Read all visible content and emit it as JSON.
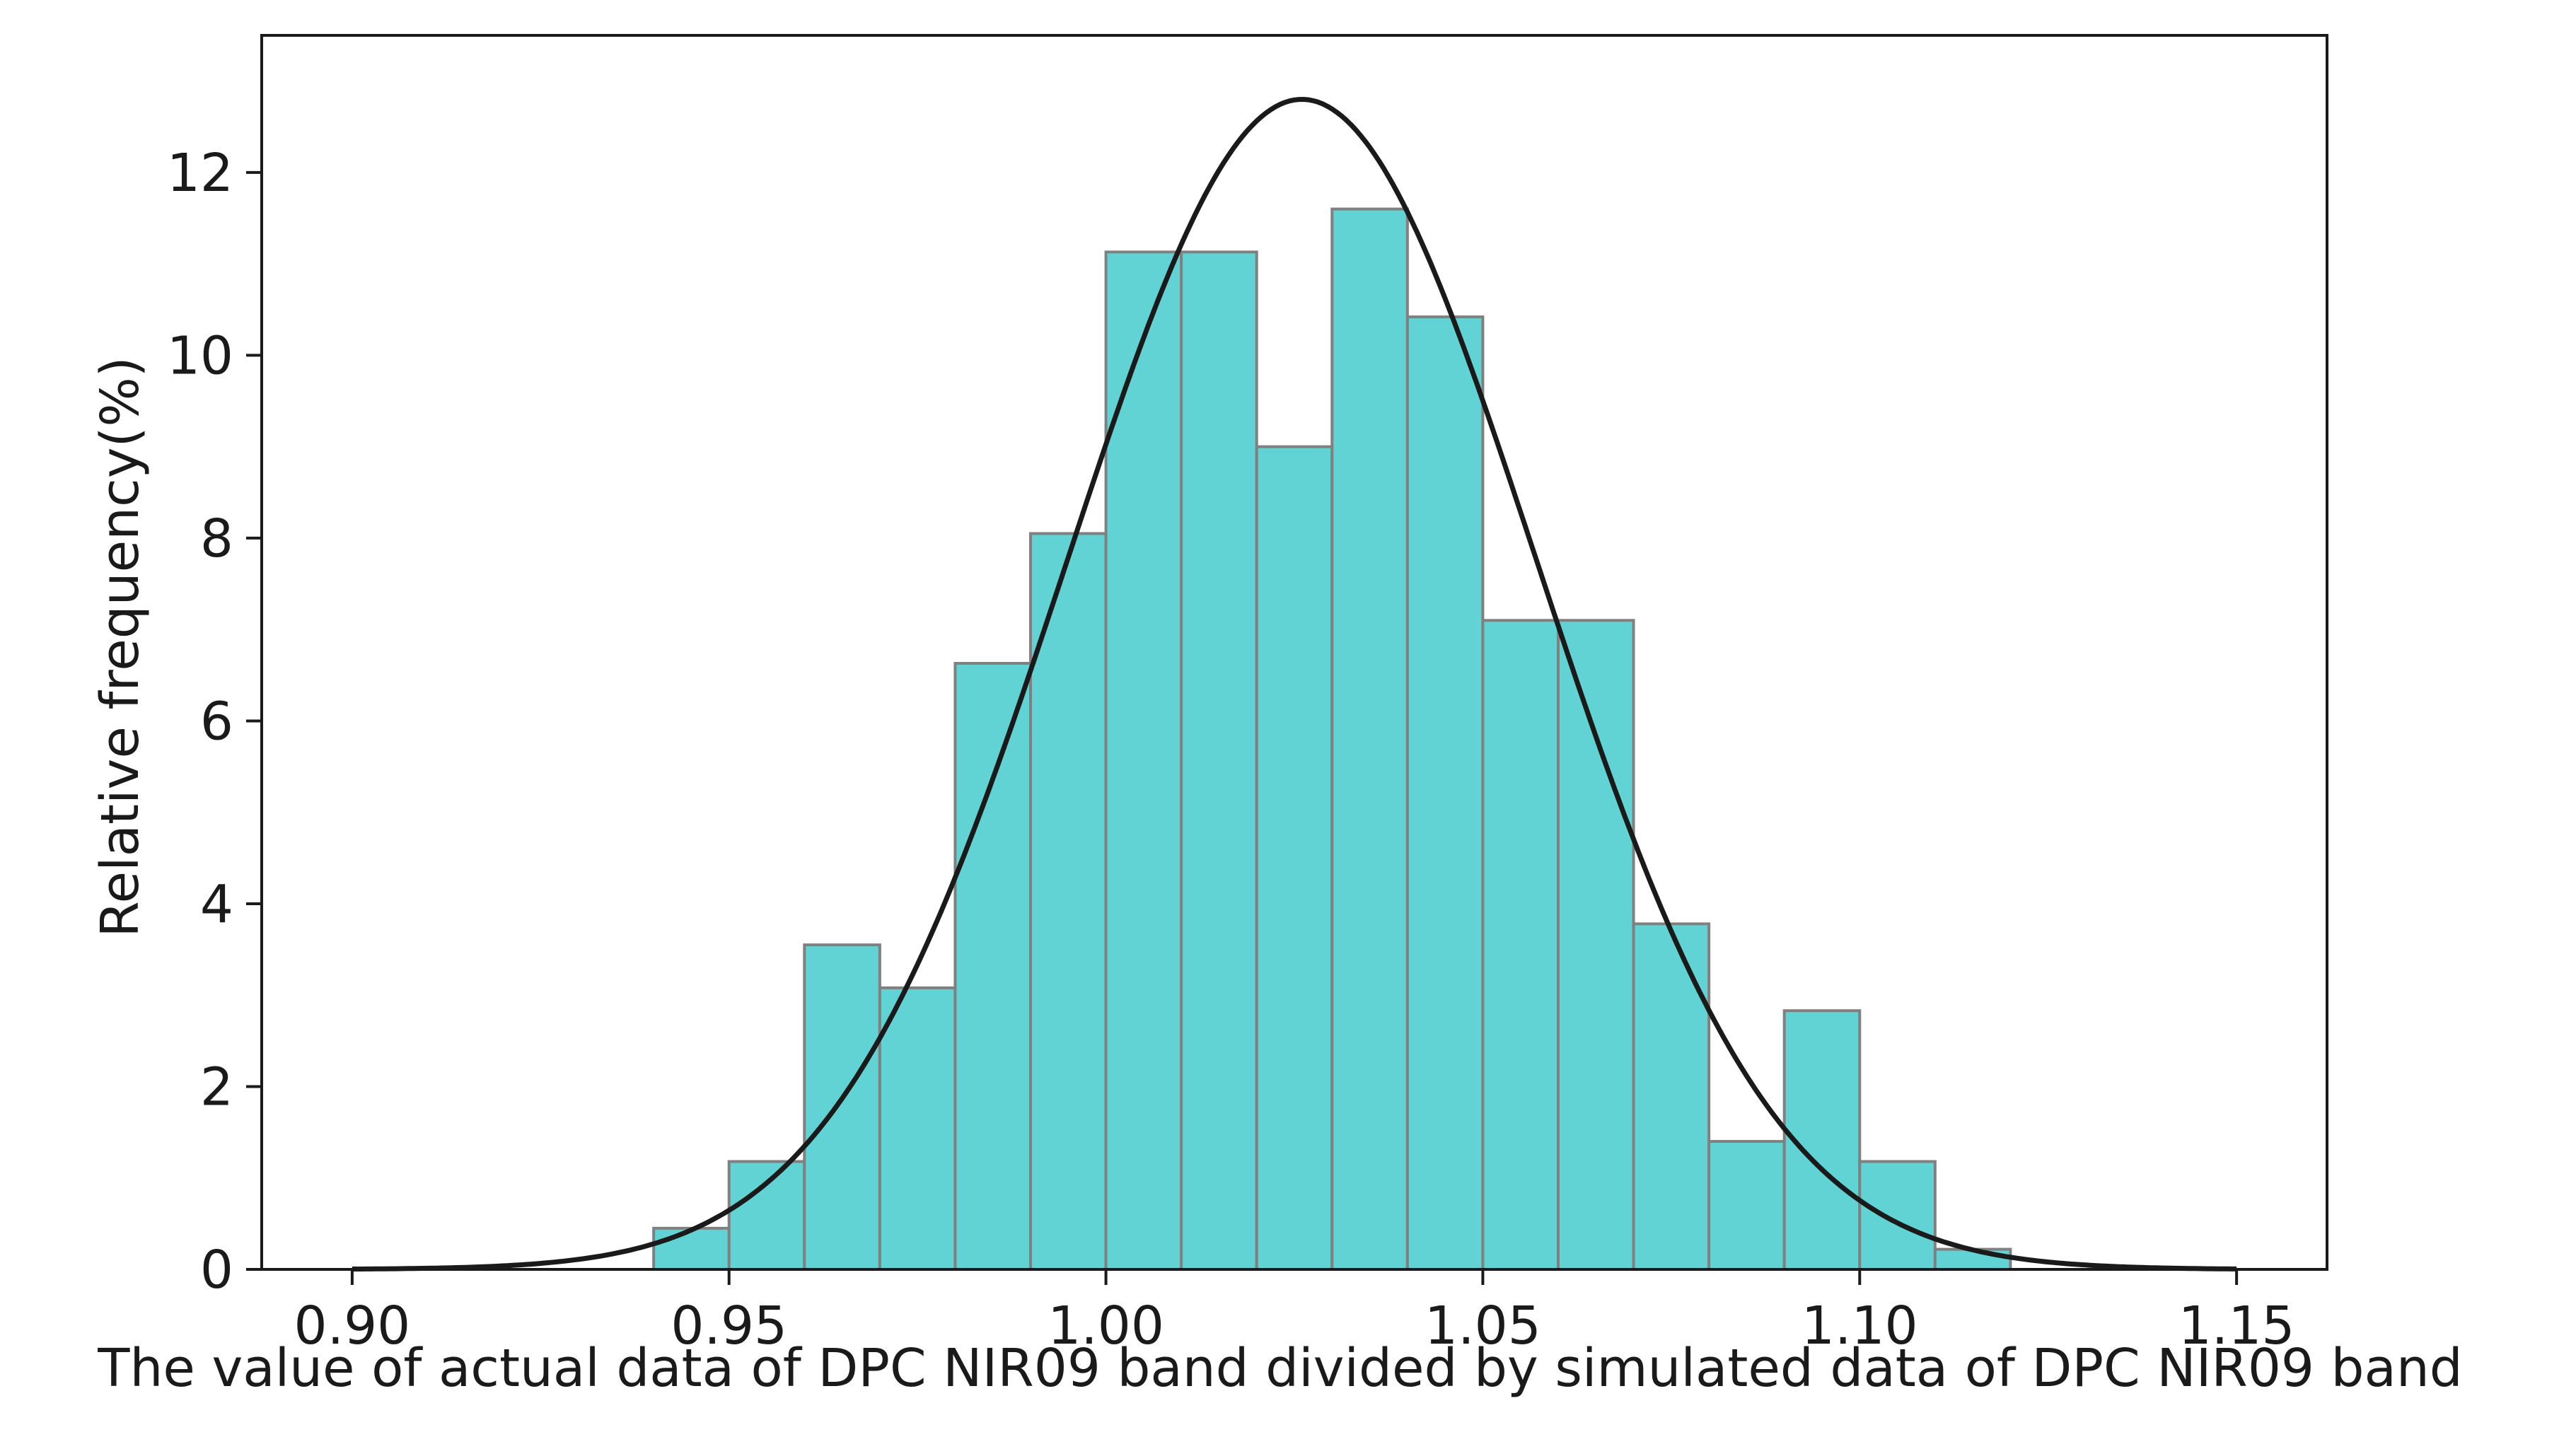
{
  "chart_data": {
    "type": "bar",
    "title": "",
    "xlabel": "The value of actual data of DPC NIR09 band divided by simulated data of DPC NIR09 band",
    "ylabel": "Relative frequency(%)",
    "xlim": [
      0.888,
      1.162
    ],
    "ylim": [
      0,
      13.5
    ],
    "x_ticks": [
      "0.90",
      "0.95",
      "1.00",
      "1.05",
      "1.10",
      "1.15"
    ],
    "y_ticks": [
      "0",
      "2",
      "4",
      "6",
      "8",
      "10",
      "12"
    ],
    "bin_width": 0.01,
    "bins": [
      {
        "x": 0.94,
        "value": 0.45
      },
      {
        "x": 0.95,
        "value": 1.18
      },
      {
        "x": 0.96,
        "value": 3.55
      },
      {
        "x": 0.97,
        "value": 3.08
      },
      {
        "x": 0.98,
        "value": 6.63
      },
      {
        "x": 0.99,
        "value": 8.05
      },
      {
        "x": 1.0,
        "value": 11.13
      },
      {
        "x": 1.01,
        "value": 11.13
      },
      {
        "x": 1.02,
        "value": 9.0
      },
      {
        "x": 1.03,
        "value": 11.6
      },
      {
        "x": 1.04,
        "value": 10.42
      },
      {
        "x": 1.05,
        "value": 7.1
      },
      {
        "x": 1.06,
        "value": 7.1
      },
      {
        "x": 1.07,
        "value": 3.78
      },
      {
        "x": 1.08,
        "value": 1.4
      },
      {
        "x": 1.09,
        "value": 2.83
      },
      {
        "x": 1.1,
        "value": 1.18
      },
      {
        "x": 1.11,
        "value": 0.22
      }
    ],
    "fit_curve": {
      "type": "normal",
      "mean": 1.026,
      "std": 0.0311,
      "peak": 12.8,
      "x_range": [
        0.9,
        1.15
      ]
    },
    "colors": {
      "bar_fill": "#62d3d4",
      "bar_edge": "#808080",
      "curve": "#1a1a1a",
      "axis": "#1a1a1a"
    }
  }
}
